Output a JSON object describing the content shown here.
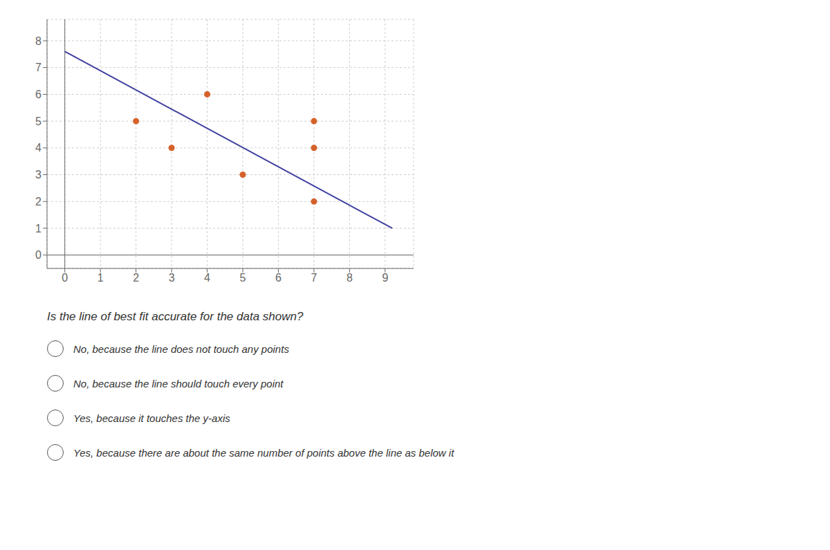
{
  "chart_data": {
    "type": "scatter",
    "series": [
      {
        "type": "line",
        "color": "#4040A0",
        "x": [
          0,
          9.2
        ],
        "values": [
          7.6,
          1.0
        ]
      },
      {
        "type": "scatter",
        "color": "#D4622A",
        "x": [
          2,
          3,
          4,
          5,
          7,
          7,
          7
        ],
        "values": [
          5,
          4,
          6,
          3,
          5,
          4,
          2
        ]
      }
    ],
    "xlim": [
      -0.5,
      9.8
    ],
    "ylim": [
      -0.5,
      8.8
    ],
    "xticks": [
      0,
      1,
      2,
      3,
      4,
      5,
      6,
      7,
      8,
      9
    ],
    "yticks": [
      0,
      1,
      2,
      3,
      4,
      5,
      6,
      7,
      8
    ],
    "grid": true,
    "annotations": [
      "Is the line of best fit accurate for the data shown?",
      "No, because the line does not touch any points",
      "No, because the line should touch every point",
      "Yes, because it touches the y-axis",
      "Yes, because there are about the same number of points above the line as below it"
    ]
  }
}
